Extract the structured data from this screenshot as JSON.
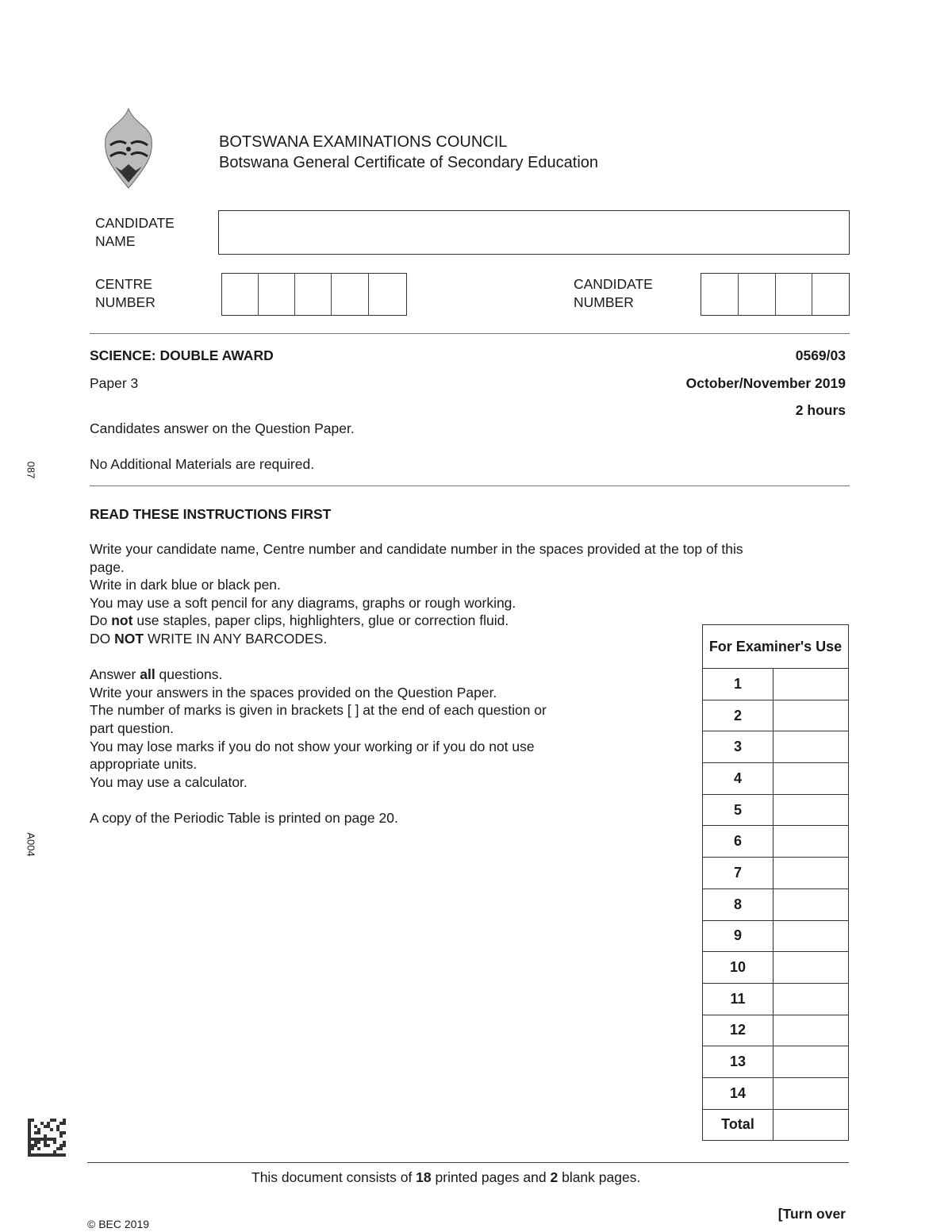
{
  "header": {
    "logo_icon": "bec-crest-logo",
    "organisation": "BOTSWANA EXAMINATIONS COUNCIL",
    "qualification": "Botswana General Certificate of Secondary Education"
  },
  "candidate_fields": {
    "name_label": [
      "CANDIDATE",
      "NAME"
    ],
    "centre_label": [
      "CENTRE",
      "NUMBER"
    ],
    "candidate_number_label": [
      "CANDIDATE",
      "NUMBER"
    ]
  },
  "paper": {
    "subject": "SCIENCE: DOUBLE AWARD",
    "code": "0569/03",
    "paper": "Paper 3",
    "session": "October/November 2019",
    "duration": "2 hours",
    "answer_note": "Candidates answer on the Question Paper.",
    "materials_note": "No Additional Materials are required."
  },
  "instructions": {
    "heading": "READ THESE INSTRUCTIONS FIRST",
    "lines": [
      "Write your candidate name, Centre number and candidate number in the spaces provided at the top of this",
      "page.",
      "Write in dark blue or black pen.",
      "You may use a soft pencil for any diagrams, graphs or rough working.",
      [
        "Do ",
        "not",
        " use staples, paper clips, highlighters, glue or correction fluid."
      ],
      [
        "DO ",
        "NOT",
        " WRITE IN ANY BARCODES."
      ],
      [
        "Answer ",
        "all",
        " questions."
      ],
      "Write your answers in the spaces provided on the Question Paper.",
      "The number of marks is given in brackets [  ] at the end of each question or",
      "part question.",
      "You may lose marks if you do not show your working or if you do not use",
      "appropriate units.",
      "You may use a calculator.",
      "A copy of the Periodic Table is printed on page 20."
    ]
  },
  "examiner_table": {
    "heading": "For Examiner's Use",
    "rows": [
      "1",
      "2",
      "3",
      "4",
      "5",
      "6",
      "7",
      "8",
      "9",
      "10",
      "11",
      "12",
      "13",
      "14",
      "Total"
    ]
  },
  "margin_codes": [
    "087",
    "A004"
  ],
  "footer": {
    "page_count_parts": [
      "This document consists of ",
      "18",
      " printed pages and ",
      "2",
      " blank pages."
    ],
    "copyright": "© BEC 2019",
    "turn_over": "[Turn over"
  }
}
